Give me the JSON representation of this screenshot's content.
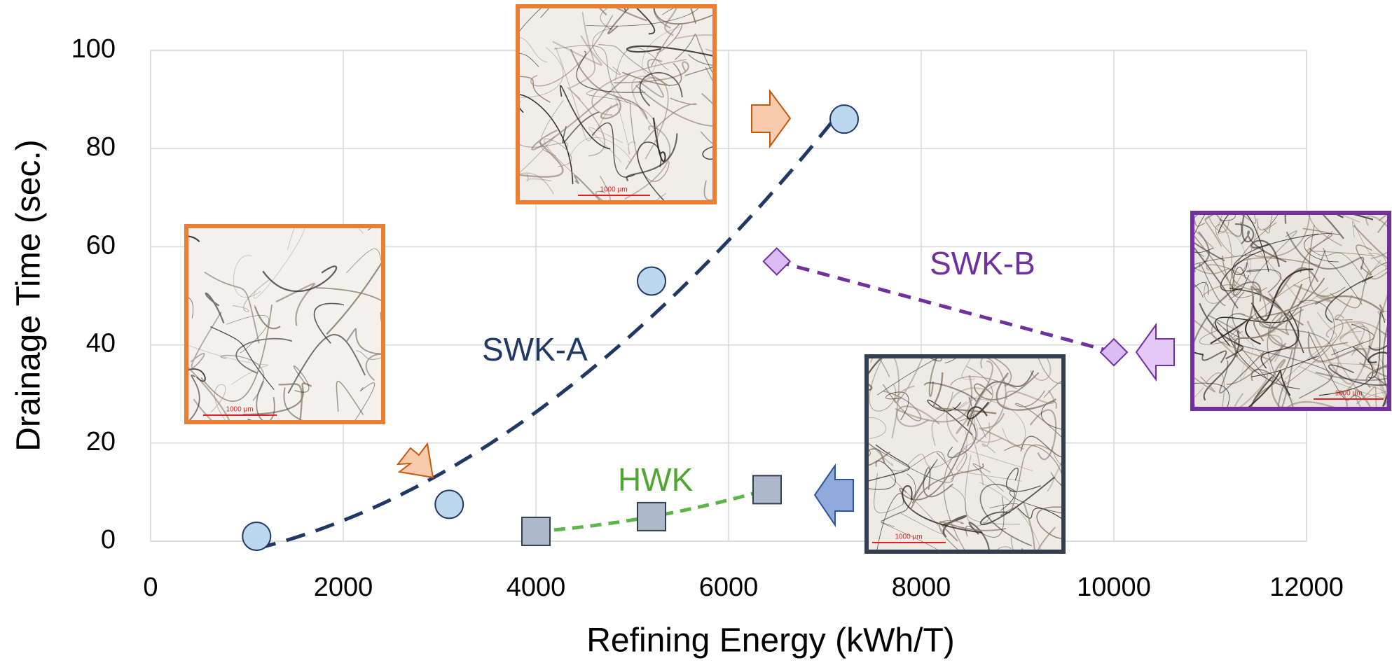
{
  "chart_data": {
    "type": "scatter",
    "x_label": "Refining Energy  (kWh/T)",
    "y_label": "Drainage Time (sec.)",
    "xlim": [
      0,
      12000
    ],
    "xticks": [
      0,
      2000,
      4000,
      6000,
      8000,
      10000,
      12000
    ],
    "ylim": [
      0,
      100
    ],
    "yticks": [
      0,
      20,
      40,
      60,
      80,
      100
    ],
    "grid": true,
    "image_scale_label": "1000 µm",
    "series": [
      {
        "name": "SWK-A",
        "color": "#1f3864",
        "marker": "circle",
        "x": [
          1100,
          3100,
          5200,
          7200
        ],
        "values": [
          1,
          7.5,
          53,
          86
        ]
      },
      {
        "name": "SWK-B",
        "color": "#7030a0",
        "marker": "diamond",
        "x": [
          6500,
          10000
        ],
        "values": [
          57,
          38.5
        ]
      },
      {
        "name": "HWK",
        "color": "#4ea72e",
        "marker": "square",
        "x": [
          4000,
          5200,
          6400
        ],
        "values": [
          2,
          5,
          10.5
        ]
      }
    ]
  }
}
